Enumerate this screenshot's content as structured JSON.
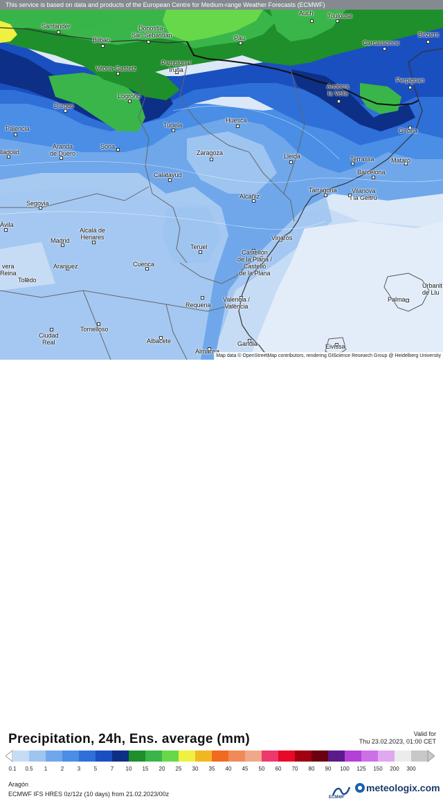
{
  "credits": {
    "top": "This service is based on data and products of the European Centre for Medium-range Weather Forecasts (ECMWF)",
    "bottom": "Map data © OpenStreetMap contributors, rendering GIScience Research Group @ Heidelberg University"
  },
  "cities": [
    {
      "name": "Auch"
    },
    {
      "name": "Toulouse"
    },
    {
      "name": "Santander"
    },
    {
      "name": "Bilbao"
    },
    {
      "name": "Donostia-\nSan Sebastián"
    },
    {
      "name": "Pau"
    },
    {
      "name": "Carcassonne"
    },
    {
      "name": "Béziers"
    },
    {
      "name": "Vitoria-Gasteiz"
    },
    {
      "name": "Pamplona/\nIruña"
    },
    {
      "name": "Perpignan"
    },
    {
      "name": "Andorra\nla Vella"
    },
    {
      "name": "Burgos"
    },
    {
      "name": "Logroño"
    },
    {
      "name": "Palencia"
    },
    {
      "name": "Tudela"
    },
    {
      "name": "Huesca"
    },
    {
      "name": "Girona"
    },
    {
      "name": "lladolid"
    },
    {
      "name": "Aranda\nde Duero"
    },
    {
      "name": "Soria"
    },
    {
      "name": "Zaragoza"
    },
    {
      "name": "Lleida"
    },
    {
      "name": "Terrassa"
    },
    {
      "name": "Mataró"
    },
    {
      "name": "Barcelona"
    },
    {
      "name": "Calatayud"
    },
    {
      "name": "Tarragona"
    },
    {
      "name": "Vilanova\ni la Geltrú"
    },
    {
      "name": "Segovia"
    },
    {
      "name": "Alcañiz"
    },
    {
      "name": "Ávila"
    },
    {
      "name": "Alcalá de\nHenares"
    },
    {
      "name": "Madrid"
    },
    {
      "name": "Vinaròs"
    },
    {
      "name": "Teruel"
    },
    {
      "name": "Castellón\nde la Plana /\nCastelló\nde la Plana"
    },
    {
      "name": "vera\nReina"
    },
    {
      "name": "Aranjuez"
    },
    {
      "name": "Cuenca"
    },
    {
      "name": "Toledo"
    },
    {
      "name": "Urbanit\nde Llu"
    },
    {
      "name": "Palma"
    },
    {
      "name": "Valencia /\nValència"
    },
    {
      "name": "Requena"
    },
    {
      "name": "Ciudad\nReal"
    },
    {
      "name": "Tomelloso"
    },
    {
      "name": "Albacete"
    },
    {
      "name": "Gandia"
    },
    {
      "name": "Eivissa"
    },
    {
      "name": "Almansa"
    }
  ],
  "title": "Precipitation, 24h, Ens. average (mm)",
  "valid": {
    "label": "Valid for",
    "value": "Thu 23.02.2023, 01:00 CET"
  },
  "scale": {
    "ticks": [
      "0.1",
      "0.5",
      "1",
      "2",
      "3",
      "5",
      "7",
      "10",
      "15",
      "20",
      "25",
      "30",
      "35",
      "40",
      "45",
      "50",
      "60",
      "70",
      "80",
      "90",
      "100",
      "125",
      "150",
      "200",
      "300"
    ],
    "colors": [
      "#c6dcf5",
      "#9ec4f0",
      "#6fa7ea",
      "#4a8ee5",
      "#2e6fd8",
      "#1a4fc0",
      "#0d2f86",
      "#1e8f2a",
      "#39b54a",
      "#67d84a",
      "#f0f040",
      "#f0b820",
      "#f06a20",
      "#f08a58",
      "#f0a888",
      "#ec3a6a",
      "#e80828",
      "#a00010",
      "#6a0010",
      "#5a1a8a",
      "#b440d8",
      "#cc70e8",
      "#e0a8f0",
      "#ececec",
      "#c8c8c8"
    ]
  },
  "region": "Aragón",
  "model": "ECMWF IFS HRES 0z/12z (10 days)  from  21.02.2023/00z",
  "logos": {
    "ecmwf": "ECMWF",
    "meteologix": "meteologix.com"
  }
}
